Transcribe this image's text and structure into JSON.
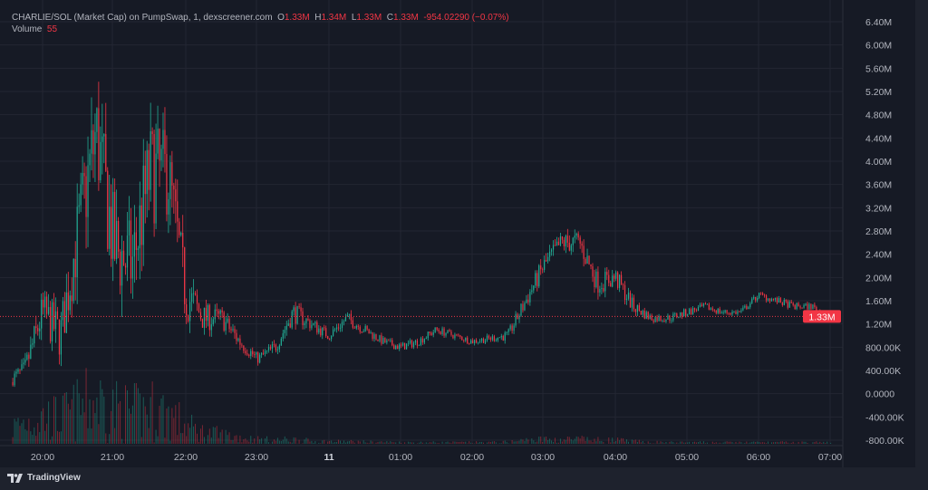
{
  "header": {
    "symbol": "CHARLIE/SOL (Market Cap) on PumpSwap, 1, dexscreener.com",
    "o_label": "O",
    "o": "1.33M",
    "h_label": "H",
    "h": "1.34M",
    "l_label": "L",
    "l": "1.33M",
    "c_label": "C",
    "c": "1.33M",
    "change": "-954.02290 (−0.07%)",
    "volume_label": "Volume",
    "volume": "55"
  },
  "footer": {
    "brand": "TradingView"
  },
  "colors": {
    "up": "#22ab94",
    "down": "#f23645",
    "background": "#161a25",
    "grid": "#232632",
    "text": "#b2b5be"
  },
  "chart_data": {
    "type": "candlestick",
    "title": "CHARLIE/SOL (Market Cap) on PumpSwap, 1, dexscreener.com",
    "y_unit": "Market Cap",
    "ylim": [
      -800000,
      6400000
    ],
    "y_ticks": [
      "6.40M",
      "6.00M",
      "5.60M",
      "5.20M",
      "4.80M",
      "4.40M",
      "4.00M",
      "3.60M",
      "3.20M",
      "2.80M",
      "2.40M",
      "2.00M",
      "1.60M",
      "1.20M",
      "800.00K",
      "400.00K",
      "0.0000",
      "-400.00K",
      "-800.00K"
    ],
    "y_tick_values": [
      6400000,
      6000000,
      5600000,
      5200000,
      4800000,
      4400000,
      4000000,
      3600000,
      3200000,
      2800000,
      2400000,
      2000000,
      1600000,
      1200000,
      800000,
      400000,
      0,
      -400000,
      -800000
    ],
    "x_ticks": [
      "20:00",
      "21:00",
      "22:00",
      "23:00",
      "11",
      "01:00",
      "02:00",
      "03:00",
      "04:00",
      "05:00",
      "06:00",
      "07:00"
    ],
    "grid": true,
    "last_price_label": "1.33M",
    "last_price": 1330000,
    "close_path": {
      "times": [
        "19:30",
        "19:45",
        "20:00",
        "20:15",
        "20:30",
        "20:45",
        "21:00",
        "21:15",
        "21:30",
        "21:45",
        "22:00",
        "22:15",
        "22:30",
        "22:45",
        "23:00",
        "23:15",
        "23:30",
        "23:45",
        "00:00",
        "00:15",
        "00:30",
        "00:45",
        "01:00",
        "01:15",
        "01:30",
        "01:45",
        "02:00",
        "02:15",
        "02:30",
        "02:45",
        "03:00",
        "03:15",
        "03:30",
        "03:45",
        "04:00",
        "04:15",
        "04:30",
        "04:45",
        "05:00",
        "05:15",
        "05:30",
        "05:45",
        "06:00",
        "06:15",
        "06:30",
        "06:45",
        "07:00",
        "07:05"
      ],
      "values_millions": [
        0.2,
        0.4,
        1.4,
        1.0,
        2.8,
        4.5,
        2.5,
        2.2,
        3.8,
        3.8,
        1.7,
        1.3,
        1.3,
        0.9,
        0.6,
        0.8,
        1.4,
        1.2,
        1.0,
        1.3,
        1.1,
        0.9,
        0.8,
        0.9,
        1.1,
        1.0,
        0.9,
        0.95,
        1.0,
        1.6,
        2.2,
        2.6,
        2.6,
        1.9,
        2.0,
        1.5,
        1.3,
        1.3,
        1.4,
        1.5,
        1.4,
        1.4,
        1.7,
        1.6,
        1.5,
        1.5,
        1.3,
        1.33
      ],
      "volatility_millions": [
        0.15,
        0.3,
        0.6,
        0.7,
        1.2,
        1.6,
        1.4,
        1.3,
        1.5,
        1.3,
        0.8,
        0.4,
        0.3,
        0.25,
        0.15,
        0.2,
        0.3,
        0.2,
        0.15,
        0.2,
        0.15,
        0.12,
        0.12,
        0.12,
        0.12,
        0.1,
        0.1,
        0.1,
        0.15,
        0.25,
        0.3,
        0.3,
        0.35,
        0.3,
        0.3,
        0.2,
        0.12,
        0.12,
        0.12,
        0.1,
        0.1,
        0.1,
        0.1,
        0.1,
        0.1,
        0.1,
        0.12,
        0.05
      ],
      "relative_volume": [
        0.3,
        0.5,
        0.6,
        0.6,
        0.8,
        1.0,
        0.8,
        0.7,
        0.8,
        0.7,
        0.4,
        0.25,
        0.2,
        0.15,
        0.1,
        0.08,
        0.1,
        0.06,
        0.05,
        0.05,
        0.04,
        0.04,
        0.03,
        0.03,
        0.03,
        0.03,
        0.03,
        0.03,
        0.04,
        0.08,
        0.1,
        0.1,
        0.1,
        0.08,
        0.08,
        0.05,
        0.04,
        0.03,
        0.03,
        0.03,
        0.03,
        0.03,
        0.03,
        0.03,
        0.03,
        0.03,
        0.03,
        0.02
      ]
    }
  }
}
